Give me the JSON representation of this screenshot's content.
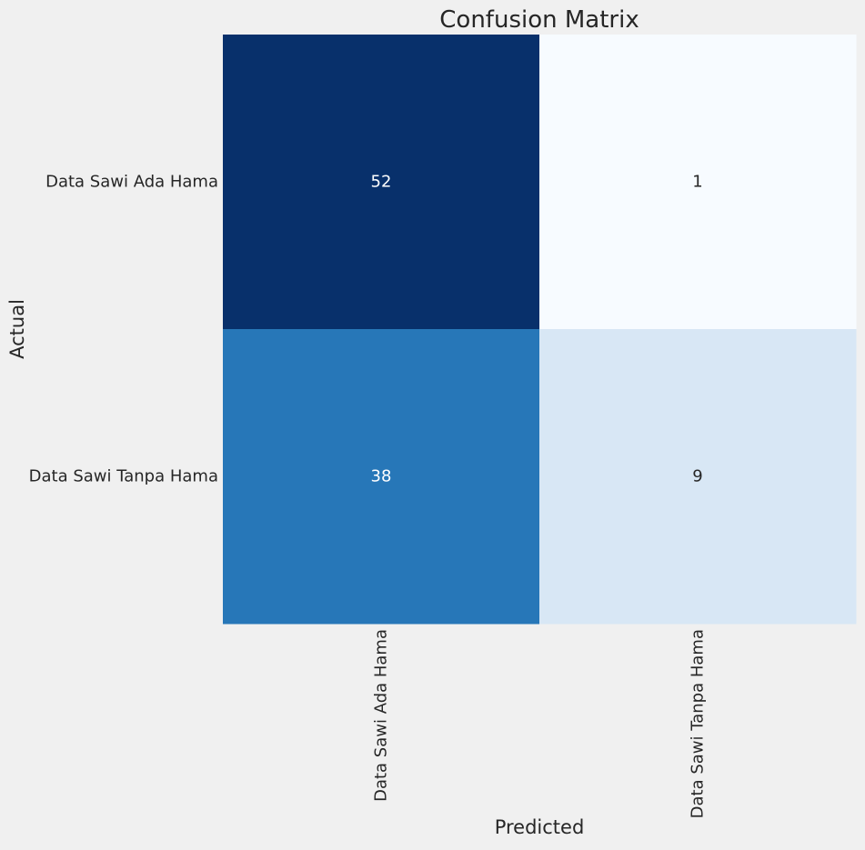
{
  "chart_data": {
    "type": "heatmap",
    "title": "Confusion Matrix",
    "xlabel": "Predicted",
    "ylabel": "Actual",
    "x_categories": [
      "Data Sawi Ada Hama",
      "Data Sawi Tanpa Hama"
    ],
    "y_categories": [
      "Data Sawi Ada Hama",
      "Data Sawi Tanpa Hama"
    ],
    "values": [
      [
        52,
        1
      ],
      [
        38,
        9
      ]
    ],
    "colormap": "Blues",
    "colorbar": false,
    "grid": false,
    "colors": {
      "background": "#f0f0f0",
      "text": "#262626",
      "low": "#f2f7fd",
      "high": "#08306b"
    }
  }
}
